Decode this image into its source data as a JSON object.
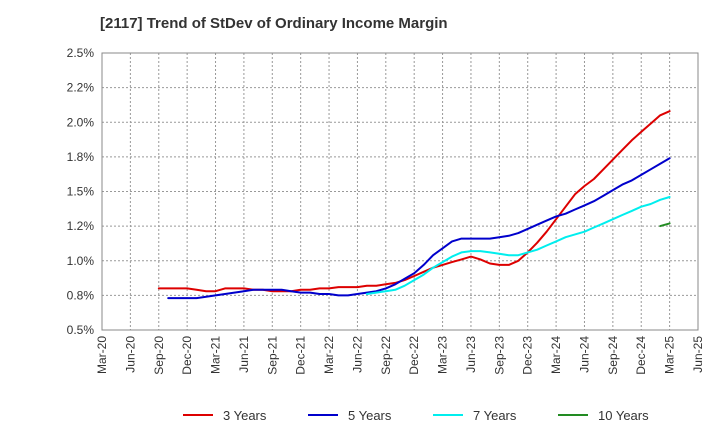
{
  "chart_data": {
    "type": "line",
    "title": "[2117]  Trend of StDev of Ordinary Income Margin",
    "xlabel": "",
    "ylabel": "",
    "x_ticks": [
      "Mar-20",
      "Jun-20",
      "Sep-20",
      "Dec-20",
      "Mar-21",
      "Jun-21",
      "Sep-21",
      "Dec-21",
      "Mar-22",
      "Jun-22",
      "Sep-22",
      "Dec-22",
      "Mar-23",
      "Jun-23",
      "Sep-23",
      "Dec-23",
      "Mar-24",
      "Jun-24",
      "Sep-24",
      "Dec-24",
      "Mar-25",
      "Jun-25"
    ],
    "y_ticks": [
      "0.5%",
      "0.8%",
      "1.0%",
      "1.2%",
      "1.5%",
      "1.8%",
      "2.0%",
      "2.2%",
      "2.5%"
    ],
    "ylim": [
      0.5,
      2.5
    ],
    "grid": true,
    "legend_position": "bottom",
    "series": [
      {
        "name": "3 Years",
        "color": "#dd0000",
        "values": [
          0.8,
          0.8,
          0.8,
          0.8,
          0.79,
          0.78,
          0.78,
          0.8,
          0.8,
          0.8,
          0.79,
          0.79,
          0.78,
          0.78,
          0.78,
          0.79,
          0.79,
          0.8,
          0.8,
          0.81,
          0.81,
          0.81,
          0.82,
          0.82,
          0.83,
          0.84,
          0.86,
          0.89,
          0.92,
          0.95,
          0.97,
          0.99,
          1.01,
          1.03,
          1.01,
          0.98,
          0.97,
          0.97,
          1.0,
          1.06,
          1.13,
          1.21,
          1.3,
          1.39,
          1.48,
          1.54,
          1.59,
          1.66,
          1.73,
          1.8,
          1.87,
          1.93,
          1.99,
          2.05,
          2.08
        ]
      },
      {
        "name": "5 Years",
        "color": "#0000cc",
        "values": [
          0.73,
          0.73,
          0.73,
          0.73,
          0.74,
          0.75,
          0.76,
          0.77,
          0.78,
          0.79,
          0.79,
          0.79,
          0.79,
          0.78,
          0.77,
          0.77,
          0.76,
          0.76,
          0.75,
          0.75,
          0.76,
          0.77,
          0.78,
          0.8,
          0.83,
          0.87,
          0.91,
          0.97,
          1.04,
          1.09,
          1.14,
          1.16,
          1.16,
          1.16,
          1.16,
          1.17,
          1.18,
          1.2,
          1.23,
          1.26,
          1.29,
          1.32,
          1.34,
          1.37,
          1.4,
          1.43,
          1.47,
          1.51,
          1.55,
          1.58,
          1.62,
          1.66,
          1.7,
          1.74
        ]
      },
      {
        "name": "7 Years",
        "color": "#00eeee",
        "values": [
          0.76,
          0.77,
          0.78,
          0.79,
          0.82,
          0.86,
          0.9,
          0.95,
          0.99,
          1.03,
          1.06,
          1.07,
          1.07,
          1.06,
          1.05,
          1.04,
          1.04,
          1.06,
          1.08,
          1.11,
          1.14,
          1.17,
          1.19,
          1.21,
          1.24,
          1.27,
          1.3,
          1.33,
          1.36,
          1.39,
          1.41,
          1.44,
          1.46
        ]
      },
      {
        "name": "10 Years",
        "color": "#228b22",
        "values": [
          1.25,
          1.27
        ]
      }
    ]
  }
}
